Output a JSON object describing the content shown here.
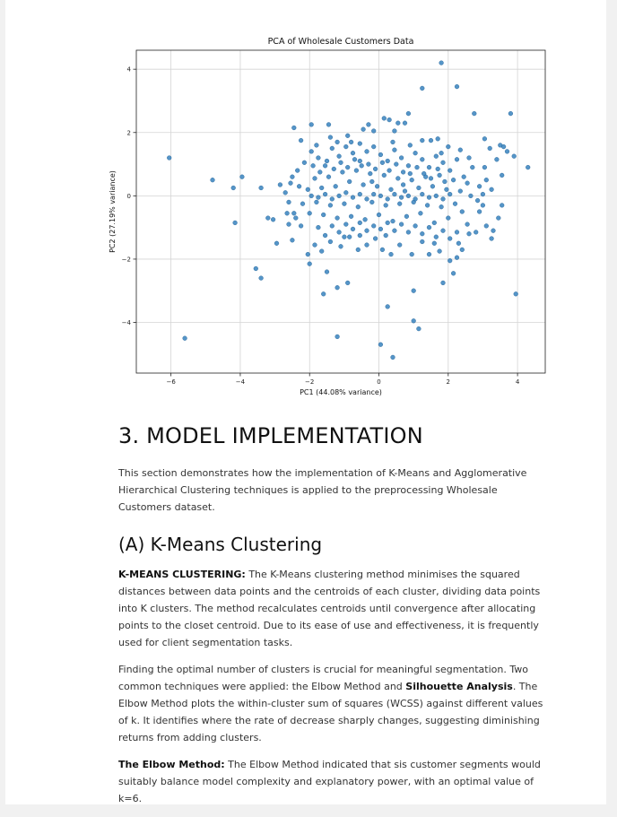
{
  "chart_data": {
    "type": "scatter",
    "title": "PCA of Wholesale Customers Data",
    "xlabel": "PC1 (44.08% variance)",
    "ylabel": "PC2 (27.19% variance)",
    "xlim": [
      -7,
      4.8
    ],
    "ylim": [
      -5.6,
      4.6
    ],
    "xticks": [
      -6,
      -4,
      -2,
      0,
      2,
      4
    ],
    "yticks": [
      -4,
      -2,
      0,
      2,
      4
    ],
    "xtick_labels": [
      "−6",
      "−4",
      "−2",
      "0",
      "2",
      "4"
    ],
    "ytick_labels": [
      "−4",
      "−2",
      "0",
      "2",
      "4"
    ],
    "grid": true,
    "color": "#2f7ebc",
    "points": [
      [
        1.8,
        4.2
      ],
      [
        1.25,
        3.4
      ],
      [
        2.25,
        3.45
      ],
      [
        2.75,
        2.6
      ],
      [
        3.8,
        2.6
      ],
      [
        4.3,
        0.9
      ],
      [
        -6.05,
        1.2
      ],
      [
        -4.8,
        0.5
      ],
      [
        -4.2,
        0.25
      ],
      [
        -3.95,
        0.6
      ],
      [
        -3.4,
        0.25
      ],
      [
        -4.15,
        -0.85
      ],
      [
        -3.2,
        -0.7
      ],
      [
        -3.05,
        -0.75
      ],
      [
        -2.95,
        -1.5
      ],
      [
        -2.6,
        -0.9
      ],
      [
        -2.5,
        -1.4
      ],
      [
        -3.55,
        -2.3
      ],
      [
        -3.4,
        -2.6
      ],
      [
        -5.6,
        -4.5
      ],
      [
        -2.0,
        -2.15
      ],
      [
        -1.6,
        -3.1
      ],
      [
        -1.5,
        -2.4
      ],
      [
        -1.2,
        -2.9
      ],
      [
        -0.9,
        -2.75
      ],
      [
        -1.2,
        -4.45
      ],
      [
        0.25,
        -3.5
      ],
      [
        0.05,
        -4.7
      ],
      [
        0.4,
        -5.1
      ],
      [
        1.0,
        -3.0
      ],
      [
        1.0,
        -3.95
      ],
      [
        1.15,
        -4.2
      ],
      [
        1.85,
        -2.75
      ],
      [
        2.15,
        -2.45
      ],
      [
        3.95,
        -3.1
      ],
      [
        -2.45,
        2.15
      ],
      [
        -1.95,
        2.25
      ],
      [
        -2.25,
        1.75
      ],
      [
        -1.8,
        1.6
      ],
      [
        -1.45,
        2.25
      ],
      [
        -1.4,
        1.85
      ],
      [
        -0.9,
        1.9
      ],
      [
        -0.55,
        1.65
      ],
      [
        -0.45,
        2.1
      ],
      [
        -0.3,
        2.25
      ],
      [
        -0.15,
        2.05
      ],
      [
        0.15,
        2.45
      ],
      [
        0.3,
        2.4
      ],
      [
        0.45,
        2.05
      ],
      [
        0.85,
        2.6
      ],
      [
        0.55,
        2.3
      ],
      [
        0.75,
        2.3
      ],
      [
        1.25,
        1.75
      ],
      [
        1.5,
        1.75
      ],
      [
        1.7,
        1.8
      ],
      [
        2.0,
        1.55
      ],
      [
        2.35,
        1.45
      ],
      [
        3.05,
        1.8
      ],
      [
        3.2,
        1.5
      ],
      [
        3.5,
        1.6
      ],
      [
        3.6,
        1.55
      ],
      [
        3.7,
        1.4
      ],
      [
        3.9,
        1.25
      ],
      [
        3.4,
        1.15
      ],
      [
        3.05,
        0.9
      ],
      [
        2.7,
        0.9
      ],
      [
        3.1,
        0.5
      ],
      [
        3.55,
        0.65
      ],
      [
        2.9,
        0.3
      ],
      [
        3.25,
        0.2
      ],
      [
        3.55,
        -0.3
      ],
      [
        3.45,
        -0.7
      ],
      [
        3.1,
        -0.95
      ],
      [
        3.3,
        -1.1
      ],
      [
        3.25,
        -1.35
      ],
      [
        2.8,
        -1.15
      ],
      [
        2.55,
        -0.9
      ],
      [
        2.6,
        -1.2
      ],
      [
        2.4,
        -1.7
      ],
      [
        2.25,
        -1.95
      ],
      [
        2.05,
        -2.05
      ],
      [
        1.75,
        -1.75
      ],
      [
        1.45,
        -1.85
      ],
      [
        1.25,
        -1.45
      ],
      [
        0.95,
        -1.85
      ],
      [
        0.6,
        -1.55
      ],
      [
        0.35,
        -1.85
      ],
      [
        0.2,
        -1.25
      ],
      [
        -0.1,
        -1.35
      ],
      [
        -0.35,
        -1.55
      ],
      [
        -0.55,
        -1.25
      ],
      [
        -0.85,
        -1.3
      ],
      [
        -1.1,
        -1.6
      ],
      [
        -1.4,
        -1.45
      ],
      [
        -1.65,
        -1.75
      ],
      [
        -1.85,
        -1.55
      ],
      [
        -2.05,
        -1.85
      ],
      [
        -2.25,
        -0.95
      ],
      [
        -2.45,
        -0.55
      ],
      [
        -2.65,
        -0.55
      ],
      [
        -2.85,
        0.35
      ],
      [
        -2.7,
        0.1
      ],
      [
        -2.55,
        0.4
      ],
      [
        -2.35,
        0.8
      ],
      [
        -2.15,
        1.05
      ],
      [
        -1.95,
        1.4
      ],
      [
        -1.75,
        1.2
      ],
      [
        -1.55,
        0.95
      ],
      [
        -1.35,
        1.5
      ],
      [
        -1.15,
        1.25
      ],
      [
        -0.95,
        1.55
      ],
      [
        -0.75,
        1.35
      ],
      [
        -0.55,
        1.1
      ],
      [
        -0.35,
        1.4
      ],
      [
        -0.15,
        1.55
      ],
      [
        0.05,
        1.3
      ],
      [
        0.25,
        1.1
      ],
      [
        0.45,
        1.45
      ],
      [
        0.65,
        1.2
      ],
      [
        0.85,
        0.95
      ],
      [
        1.05,
        1.35
      ],
      [
        1.25,
        1.15
      ],
      [
        1.45,
        0.9
      ],
      [
        1.65,
        1.25
      ],
      [
        1.85,
        1.05
      ],
      [
        2.05,
        0.8
      ],
      [
        2.25,
        1.15
      ],
      [
        2.45,
        0.6
      ],
      [
        -2.05,
        0.2
      ],
      [
        -1.85,
        0.55
      ],
      [
        -1.65,
        0.25
      ],
      [
        -1.45,
        0.6
      ],
      [
        -1.25,
        0.3
      ],
      [
        -1.05,
        0.75
      ],
      [
        -0.85,
        0.45
      ],
      [
        -0.65,
        0.8
      ],
      [
        -0.45,
        0.35
      ],
      [
        -0.25,
        0.7
      ],
      [
        -0.05,
        0.3
      ],
      [
        0.15,
        0.65
      ],
      [
        0.35,
        0.2
      ],
      [
        0.55,
        0.55
      ],
      [
        0.75,
        0.15
      ],
      [
        0.95,
        0.5
      ],
      [
        1.15,
        0.25
      ],
      [
        1.35,
        0.6
      ],
      [
        1.55,
        0.3
      ],
      [
        1.75,
        0.65
      ],
      [
        1.95,
        0.2
      ],
      [
        2.15,
        0.5
      ],
      [
        2.35,
        0.15
      ],
      [
        2.55,
        0.4
      ],
      [
        -2.2,
        -0.25
      ],
      [
        -2.0,
        -0.55
      ],
      [
        -1.8,
        -0.2
      ],
      [
        -1.6,
        -0.6
      ],
      [
        -1.4,
        -0.3
      ],
      [
        -1.2,
        -0.7
      ],
      [
        -1.0,
        -0.25
      ],
      [
        -0.8,
        -0.65
      ],
      [
        -0.6,
        -0.35
      ],
      [
        -0.4,
        -0.75
      ],
      [
        -0.2,
        -0.2
      ],
      [
        0.0,
        -0.6
      ],
      [
        0.2,
        -0.3
      ],
      [
        0.4,
        -0.8
      ],
      [
        0.6,
        -0.25
      ],
      [
        0.8,
        -0.65
      ],
      [
        1.0,
        -0.2
      ],
      [
        1.2,
        -0.55
      ],
      [
        1.4,
        -0.3
      ],
      [
        1.6,
        -0.85
      ],
      [
        1.8,
        -0.35
      ],
      [
        2.0,
        -0.7
      ],
      [
        2.2,
        -0.25
      ],
      [
        2.4,
        -0.5
      ],
      [
        -1.9,
        0.95
      ],
      [
        -1.7,
        0.75
      ],
      [
        -1.5,
        1.1
      ],
      [
        -1.3,
        0.85
      ],
      [
        -1.1,
        1.05
      ],
      [
        -0.9,
        0.9
      ],
      [
        -0.7,
        1.15
      ],
      [
        -0.5,
        0.95
      ],
      [
        -0.3,
        1.0
      ],
      [
        -0.1,
        0.85
      ],
      [
        0.1,
        1.05
      ],
      [
        0.3,
        0.8
      ],
      [
        0.5,
        1.0
      ],
      [
        0.7,
        0.75
      ],
      [
        0.9,
        0.7
      ],
      [
        1.1,
        0.9
      ],
      [
        1.3,
        0.7
      ],
      [
        1.5,
        0.55
      ],
      [
        1.7,
        0.85
      ],
      [
        1.9,
        0.45
      ],
      [
        -1.75,
        -1.0
      ],
      [
        -1.55,
        -1.25
      ],
      [
        -1.35,
        -0.95
      ],
      [
        -1.15,
        -1.15
      ],
      [
        -0.95,
        -0.9
      ],
      [
        -0.75,
        -1.05
      ],
      [
        -0.55,
        -0.85
      ],
      [
        -0.35,
        -1.1
      ],
      [
        -0.15,
        -0.95
      ],
      [
        0.05,
        -1.05
      ],
      [
        0.25,
        -0.85
      ],
      [
        0.45,
        -1.1
      ],
      [
        0.65,
        -0.9
      ],
      [
        0.85,
        -1.15
      ],
      [
        1.05,
        -0.95
      ],
      [
        1.25,
        -1.2
      ],
      [
        1.45,
        -1.0
      ],
      [
        1.65,
        -1.3
      ],
      [
        1.85,
        -1.1
      ],
      [
        2.05,
        -1.35
      ],
      [
        2.25,
        -1.15
      ],
      [
        -1.95,
        0.0
      ],
      [
        -1.75,
        -0.05
      ],
      [
        -1.55,
        0.05
      ],
      [
        -1.35,
        -0.1
      ],
      [
        -1.15,
        0.0
      ],
      [
        -0.95,
        0.1
      ],
      [
        -0.75,
        -0.05
      ],
      [
        -0.55,
        0.05
      ],
      [
        -0.35,
        -0.1
      ],
      [
        -0.15,
        0.05
      ],
      [
        0.05,
        0.0
      ],
      [
        0.25,
        -0.1
      ],
      [
        0.45,
        0.05
      ],
      [
        0.65,
        -0.05
      ],
      [
        0.85,
        0.0
      ],
      [
        1.05,
        -0.1
      ],
      [
        1.25,
        0.05
      ],
      [
        1.45,
        -0.05
      ],
      [
        1.65,
        0.0
      ],
      [
        1.85,
        -0.1
      ],
      [
        2.05,
        0.05
      ],
      [
        2.65,
        0.0
      ],
      [
        2.85,
        -0.15
      ],
      [
        3.0,
        0.05
      ],
      [
        -2.5,
        0.6
      ],
      [
        -2.3,
        0.3
      ],
      [
        -2.6,
        -0.2
      ],
      [
        -2.4,
        -0.7
      ],
      [
        -1.2,
        1.7
      ],
      [
        -0.8,
        1.7
      ],
      [
        0.4,
        1.7
      ],
      [
        0.9,
        1.6
      ],
      [
        1.8,
        1.35
      ],
      [
        2.6,
        1.2
      ],
      [
        2.9,
        -0.5
      ],
      [
        3.0,
        -0.3
      ],
      [
        0.1,
        -1.7
      ],
      [
        -0.6,
        -1.7
      ],
      [
        -1.0,
        -1.3
      ],
      [
        1.6,
        -1.5
      ],
      [
        2.3,
        -1.5
      ],
      [
        -0.2,
        0.45
      ],
      [
        0.7,
        0.35
      ]
    ]
  },
  "section": {
    "heading": "3. MODEL IMPLEMENTATION",
    "intro": "This section demonstrates how the implementation of K-Means and Agglomerative Hierarchical Clustering techniques is applied to the preprocessing Wholesale Customers dataset."
  },
  "subsection": {
    "heading": "(A) K-Means Clustering",
    "p1_bold": "K-MEANS CLUSTERING:",
    "p1_text": " The K-Means clustering method minimises the squared distances between data points and the centroids of each cluster, dividing data points into K clusters. The method recalculates centroids until convergence after allocating points to the closet centroid. Due to its ease of use and effectiveness, it is frequently used for client segmentation tasks.",
    "p2_text_a": "Finding the optimal number of clusters is crucial for meaningful segmentation. Two common techniques were applied: the Elbow Method and ",
    "p2_bold": "Silhouette Analysis",
    "p2_text_b": ". The Elbow Method plots the within-cluster sum of squares (WCSS) against different values of k. It identifies where the rate of decrease sharply changes, suggesting diminishing returns from adding clusters.",
    "p3_bold": "The Elbow Method:",
    "p3_text": " The Elbow Method indicated that sis customer segments would suitably balance model complexity and explanatory power, with an optimal value of k=6."
  }
}
